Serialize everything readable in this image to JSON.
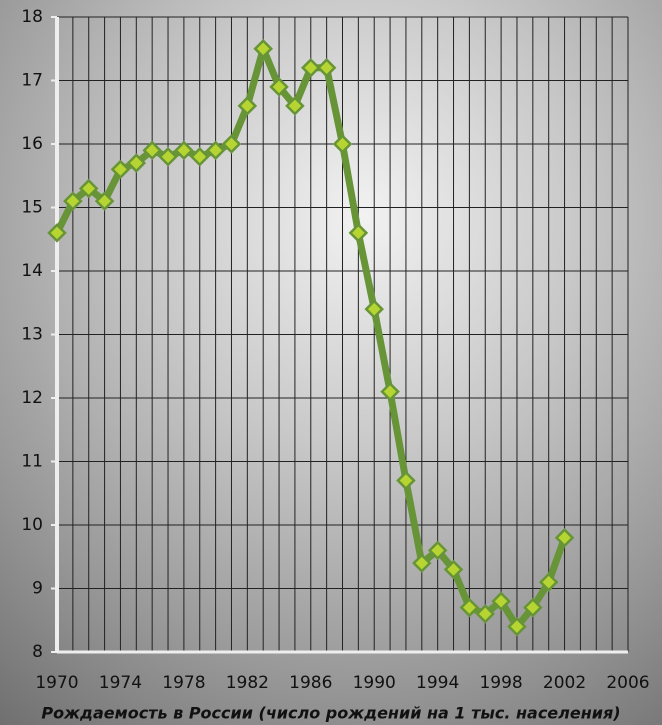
{
  "chart_data": {
    "type": "line",
    "title": "Рождаемость в России (число рождений на 1 тыс. населения)",
    "x": [
      1970,
      1971,
      1972,
      1973,
      1974,
      1975,
      1976,
      1977,
      1978,
      1979,
      1980,
      1981,
      1982,
      1983,
      1984,
      1985,
      1986,
      1987,
      1988,
      1989,
      1990,
      1991,
      1992,
      1993,
      1994,
      1995,
      1996,
      1997,
      1998,
      1999,
      2000,
      2001,
      2002
    ],
    "series": [
      {
        "color": "#679437",
        "marker_color": "#b6d432",
        "values": [
          14.6,
          15.1,
          15.3,
          15.1,
          15.6,
          15.7,
          15.9,
          15.8,
          15.9,
          15.8,
          15.9,
          16.0,
          16.6,
          17.5,
          16.9,
          16.6,
          17.2,
          17.2,
          16.0,
          14.6,
          13.4,
          12.1,
          10.7,
          9.4,
          9.6,
          9.3,
          8.7,
          8.6,
          8.8,
          8.4,
          8.7,
          9.1,
          9.8
        ]
      }
    ],
    "xlim": [
      1970,
      2006
    ],
    "xticks": [
      1970,
      1974,
      1978,
      1982,
      1986,
      1990,
      1994,
      1998,
      2002,
      2006
    ],
    "xminorticks": [
      1970,
      1971,
      1972,
      1973,
      1974,
      1975,
      1976,
      1977,
      1978,
      1979,
      1980,
      1981,
      1982,
      1983,
      1984,
      1985,
      1986,
      1987,
      1988,
      1989,
      1990,
      1991,
      1992,
      1993,
      1994,
      1995,
      1996,
      1997,
      1998,
      1999,
      2000,
      2001,
      2002,
      2003,
      2004,
      2005,
      2006
    ],
    "ylim": [
      8,
      18
    ],
    "yticks": [
      8,
      9,
      10,
      11,
      12,
      13,
      14,
      15,
      16,
      17,
      18
    ],
    "grid": true
  }
}
